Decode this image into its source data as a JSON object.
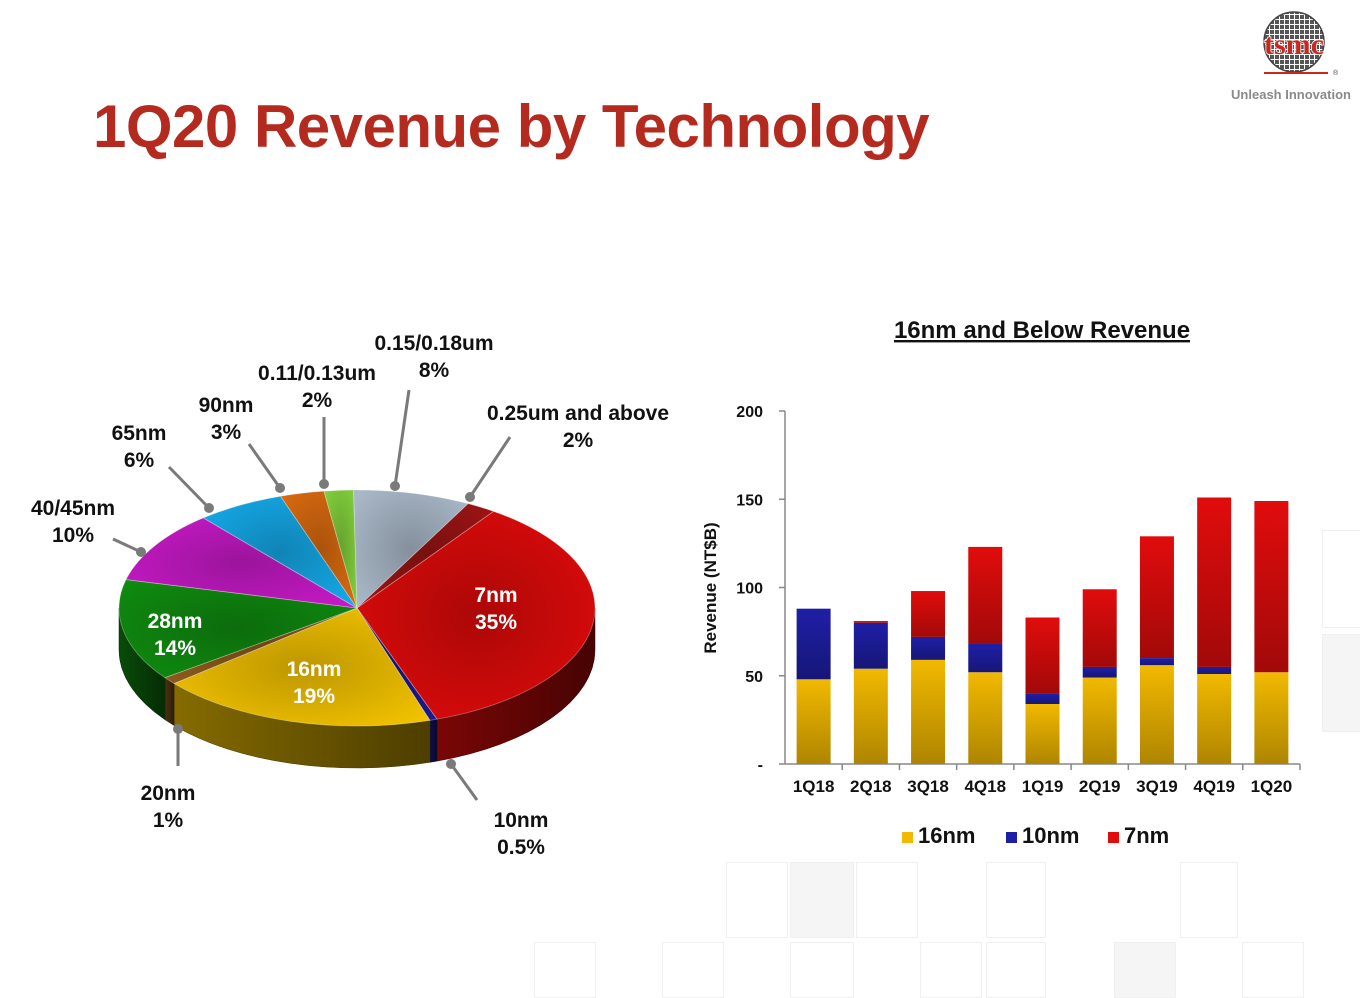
{
  "page": {
    "title": "1Q20 Revenue by Technology",
    "logo_text": "tsmc",
    "logo_tagline": "Unleash Innovation",
    "logo_mark": "®"
  },
  "chart_data": [
    {
      "type": "pie",
      "title": "",
      "slices": [
        {
          "label": "7nm",
          "pct_label": "35%",
          "value": 35,
          "color": "#dd0a0a"
        },
        {
          "label": "10nm",
          "pct_label": "0.5%",
          "value": 0.5,
          "color": "#1a1a8a"
        },
        {
          "label": "16nm",
          "pct_label": "19%",
          "value": 19,
          "color": "#f2c200"
        },
        {
          "label": "20nm",
          "pct_label": "1%",
          "value": 1,
          "color": "#8b5a1a"
        },
        {
          "label": "28nm",
          "pct_label": "14%",
          "value": 14,
          "color": "#0f8a0f"
        },
        {
          "label": "40/45nm",
          "pct_label": "10%",
          "value": 10,
          "color": "#c719c7"
        },
        {
          "label": "65nm",
          "pct_label": "6%",
          "value": 6,
          "color": "#15a9e8"
        },
        {
          "label": "90nm",
          "pct_label": "3%",
          "value": 3,
          "color": "#d96a10"
        },
        {
          "label": "0.11/0.13um",
          "pct_label": "2%",
          "value": 2,
          "color": "#82cf3c"
        },
        {
          "label": "0.15/0.18um",
          "pct_label": "8%",
          "value": 8,
          "color": "#a9b8c8"
        },
        {
          "label": "0.25um and above",
          "pct_label": "2%",
          "value": 2,
          "color": "#9a1414"
        }
      ]
    },
    {
      "type": "bar",
      "stacked": true,
      "title": "16nm and Below Revenue",
      "ylabel": "Revenue (NT$B)",
      "ylim": [
        0,
        200
      ],
      "yticks": [
        "-",
        "50",
        "100",
        "150",
        "200"
      ],
      "categories": [
        "1Q18",
        "2Q18",
        "3Q18",
        "4Q18",
        "1Q19",
        "2Q19",
        "3Q19",
        "4Q19",
        "1Q20"
      ],
      "series": [
        {
          "name": "16nm",
          "color": "#f2b900",
          "values": [
            48,
            54,
            59,
            52,
            34,
            49,
            56,
            51,
            52
          ]
        },
        {
          "name": "10nm",
          "color": "#1f1fa6",
          "values": [
            40,
            26,
            13,
            16,
            6,
            6,
            4,
            4,
            0
          ]
        },
        {
          "name": "7nm",
          "color": "#e10c0c",
          "values": [
            0,
            1,
            26,
            55,
            43,
            44,
            69,
            96,
            97
          ]
        }
      ],
      "legend_position": "bottom",
      "grid": false
    }
  ]
}
